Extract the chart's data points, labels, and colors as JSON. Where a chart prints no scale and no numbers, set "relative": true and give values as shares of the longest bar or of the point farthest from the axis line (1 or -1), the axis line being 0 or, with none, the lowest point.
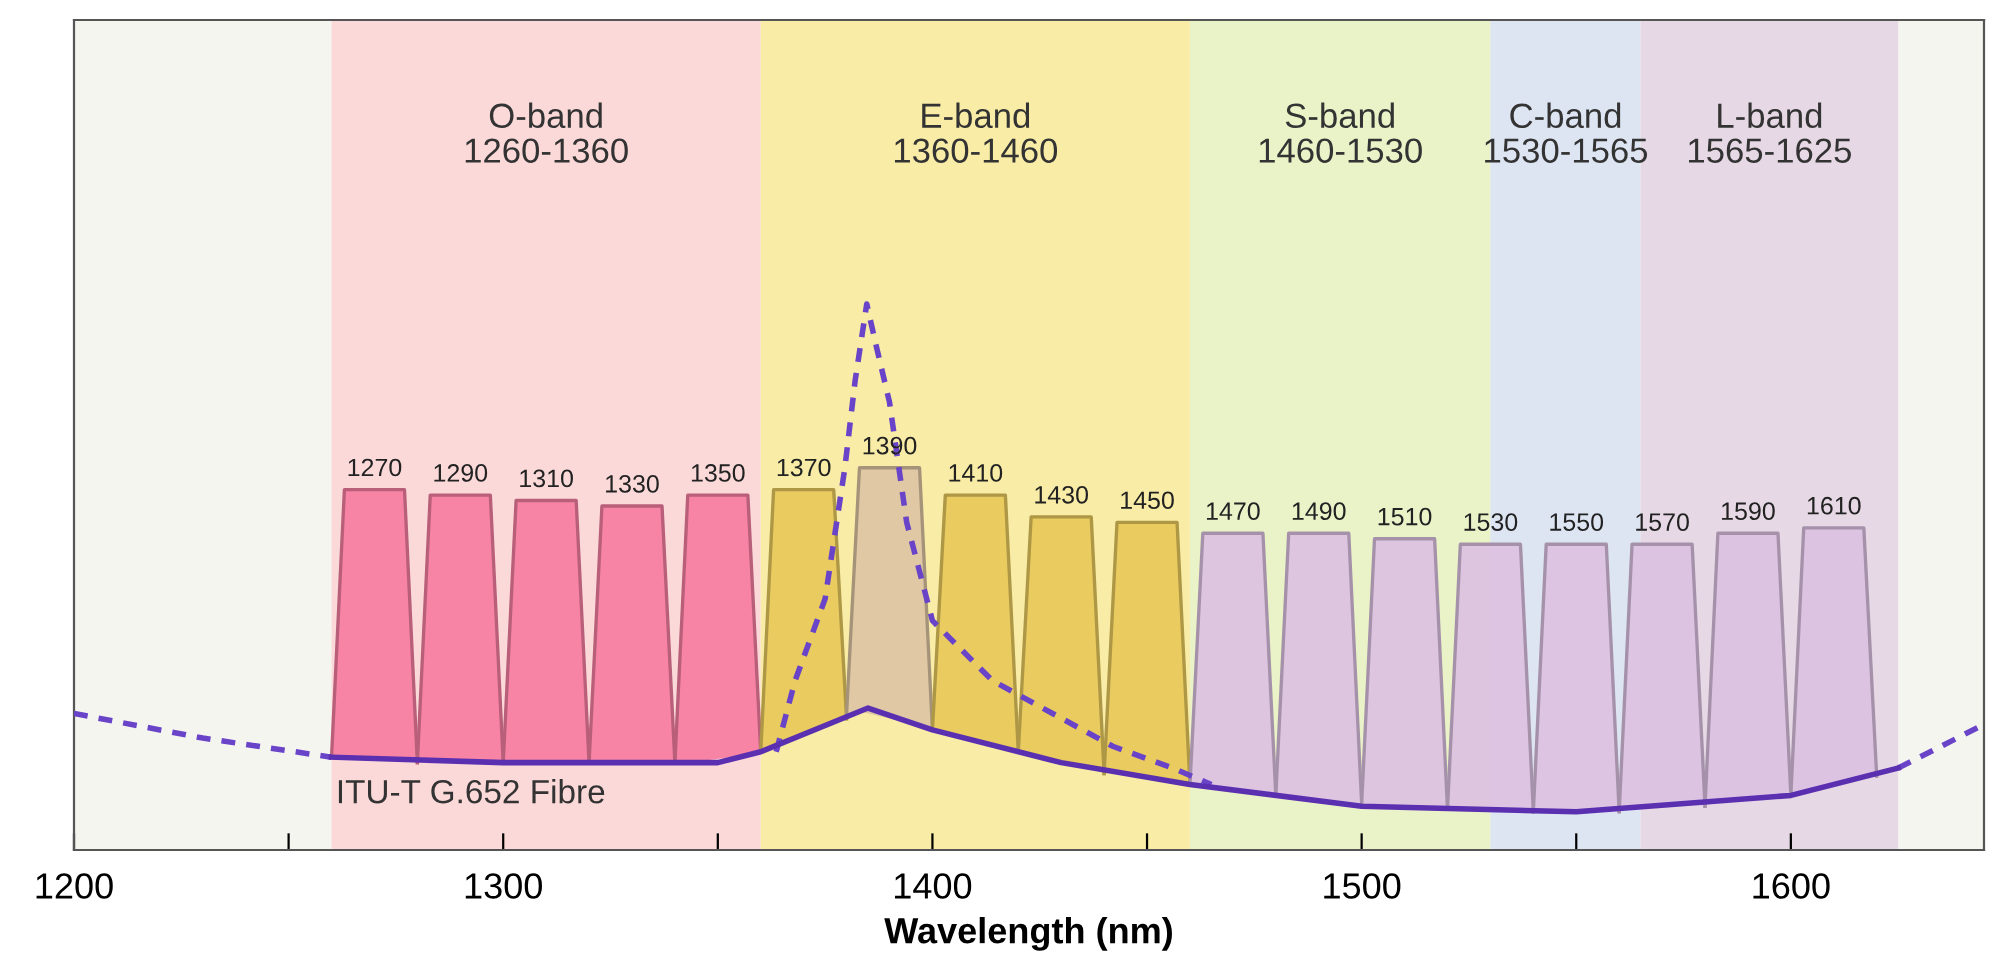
{
  "chart_data": {
    "type": "line",
    "xlabel": "Wavelength (nm)",
    "relative": true,
    "xlim": [
      1200,
      1645
    ],
    "xticks": [
      1200,
      {
        "value": 1250,
        "label": null
      },
      1300,
      {
        "value": 1350,
        "label": null
      },
      1400,
      {
        "value": 1450,
        "label": null
      },
      1500,
      {
        "value": 1550,
        "label": null
      },
      1600
    ],
    "grid": false,
    "tick_labels": "x",
    "bands": [
      {
        "axis": "x",
        "from": 1260,
        "to": 1360,
        "label": "O-band\n1260-1360",
        "color": "#fcd9d9"
      },
      {
        "axis": "x",
        "from": 1360,
        "to": 1460,
        "label": "E-band\n1360-1460",
        "color": "#f8eca6"
      },
      {
        "axis": "x",
        "from": 1460,
        "to": 1530,
        "label": "S-band\n1460-1530",
        "color": "#eaf2c8"
      },
      {
        "axis": "x",
        "from": 1530,
        "to": 1565,
        "label": "C-band\n1530-1565",
        "color": "#dde4f2"
      },
      {
        "axis": "x",
        "from": 1565,
        "to": 1625,
        "label": "L-band\n1565-1625",
        "color": "#e6d8e4"
      }
    ],
    "series": [
      {
        "type": "area",
        "color": "#f77fa2",
        "x": [
          1260,
          1263,
          1277,
          1280
        ],
        "values": [
          0.17,
          0.66,
          0.66,
          0.16
        ]
      },
      {
        "type": "area",
        "color": "#f77fa2",
        "x": [
          1280,
          1283,
          1297,
          1300
        ],
        "values": [
          0.16,
          0.65,
          0.65,
          0.16
        ]
      },
      {
        "type": "area",
        "color": "#f77fa2",
        "x": [
          1300,
          1303,
          1317,
          1320
        ],
        "values": [
          0.16,
          0.64,
          0.64,
          0.16
        ]
      },
      {
        "type": "area",
        "color": "#f77fa2",
        "x": [
          1320,
          1323,
          1337,
          1340
        ],
        "values": [
          0.16,
          0.63,
          0.63,
          0.16
        ]
      },
      {
        "type": "area",
        "color": "#f77fa2",
        "x": [
          1340,
          1343,
          1357,
          1360
        ],
        "values": [
          0.16,
          0.65,
          0.65,
          0.18
        ]
      },
      {
        "type": "area",
        "color": "#e8c95c",
        "x": [
          1360,
          1363,
          1377,
          1380
        ],
        "values": [
          0.18,
          0.66,
          0.66,
          0.24
        ]
      },
      {
        "type": "area",
        "color": "#ddc6a2",
        "x": [
          1380,
          1383,
          1397,
          1400
        ],
        "values": [
          0.25,
          0.7,
          0.7,
          0.22
        ]
      },
      {
        "type": "area",
        "color": "#e8c95c",
        "x": [
          1400,
          1403,
          1417,
          1420
        ],
        "values": [
          0.22,
          0.65,
          0.65,
          0.18
        ]
      },
      {
        "type": "area",
        "color": "#e8c95c",
        "x": [
          1420,
          1423,
          1437,
          1440
        ],
        "values": [
          0.18,
          0.61,
          0.61,
          0.14
        ]
      },
      {
        "type": "area",
        "color": "#e8c95c",
        "x": [
          1440,
          1443,
          1457,
          1460
        ],
        "values": [
          0.14,
          0.6,
          0.6,
          0.12
        ]
      },
      {
        "type": "area",
        "color": "#dcc2e2",
        "x": [
          1460,
          1463,
          1477,
          1480
        ],
        "values": [
          0.12,
          0.58,
          0.58,
          0.1
        ]
      },
      {
        "type": "area",
        "color": "#dcc2e2",
        "x": [
          1480,
          1483,
          1497,
          1500
        ],
        "values": [
          0.1,
          0.58,
          0.58,
          0.085
        ]
      },
      {
        "type": "area",
        "color": "#dcc2e2",
        "x": [
          1500,
          1503,
          1517,
          1520
        ],
        "values": [
          0.085,
          0.57,
          0.57,
          0.075
        ]
      },
      {
        "type": "area",
        "color": "#dcc2e2",
        "x": [
          1520,
          1523,
          1537,
          1540
        ],
        "values": [
          0.075,
          0.56,
          0.56,
          0.07
        ]
      },
      {
        "type": "area",
        "color": "#dcc2e2",
        "x": [
          1540,
          1543,
          1557,
          1560
        ],
        "values": [
          0.07,
          0.56,
          0.56,
          0.07
        ]
      },
      {
        "type": "area",
        "color": "#dcc2e2",
        "x": [
          1560,
          1563,
          1577,
          1580
        ],
        "values": [
          0.07,
          0.56,
          0.56,
          0.08
        ]
      },
      {
        "type": "area",
        "color": "#dcc2e2",
        "x": [
          1580,
          1583,
          1597,
          1600
        ],
        "values": [
          0.08,
          0.58,
          0.58,
          0.1
        ]
      },
      {
        "type": "area",
        "color": "#dcc2e2",
        "x": [
          1600,
          1603,
          1617,
          1620
        ],
        "values": [
          0.1,
          0.59,
          0.59,
          0.135
        ]
      },
      {
        "color": "#6a44c8",
        "line_style": "dashed",
        "x": [
          1363.6,
          1368,
          1375,
          1379.6,
          1382,
          1384.7,
          1387,
          1390,
          1394,
          1400,
          1414,
          1428,
          1442,
          1456,
          1465
        ],
        "values": [
          0.18,
          0.31,
          0.46,
          0.7,
          0.86,
          1,
          0.92,
          0.82,
          0.6,
          0.42,
          0.31,
          0.25,
          0.19,
          0.15,
          0.12
        ]
      },
      {
        "color": "#6a44c8",
        "line_style": "dashed",
        "x": [
          1200,
          1230,
          1260
        ],
        "values": [
          0.25,
          0.205,
          0.17
        ]
      },
      {
        "color": "#6a44c8",
        "line_style": "dashed",
        "x": [
          1625,
          1645
        ],
        "values": [
          0.15,
          0.23
        ]
      },
      {
        "name": "ITU-T G.652 Fibre",
        "color": "#5a2fb0",
        "line_style": "solid",
        "x": [
          1260,
          1300,
          1350,
          1360,
          1385,
          1400,
          1430,
          1460,
          1500,
          1550,
          1600,
          1625
        ],
        "values": [
          0.17,
          0.16,
          0.16,
          0.18,
          0.26,
          0.22,
          0.16,
          0.12,
          0.08,
          0.07,
          0.1,
          0.15
        ]
      }
    ],
    "annotations": [
      {
        "text": "1270",
        "x": 1270,
        "y": 0.66
      },
      {
        "text": "1290",
        "x": 1290,
        "y": 0.65
      },
      {
        "text": "1310",
        "x": 1310,
        "y": 0.64
      },
      {
        "text": "1330",
        "x": 1330,
        "y": 0.63
      },
      {
        "text": "1350",
        "x": 1350,
        "y": 0.65
      },
      {
        "text": "1370",
        "x": 1370,
        "y": 0.66
      },
      {
        "text": "1390",
        "x": 1390,
        "y": 0.7
      },
      {
        "text": "1410",
        "x": 1410,
        "y": 0.65
      },
      {
        "text": "1430",
        "x": 1430,
        "y": 0.61
      },
      {
        "text": "1450",
        "x": 1450,
        "y": 0.6
      },
      {
        "text": "1470",
        "x": 1470,
        "y": 0.58
      },
      {
        "text": "1490",
        "x": 1490,
        "y": 0.58
      },
      {
        "text": "1510",
        "x": 1510,
        "y": 0.57
      },
      {
        "text": "1530",
        "x": 1530,
        "y": 0.56
      },
      {
        "text": "1550",
        "x": 1550,
        "y": 0.56
      },
      {
        "text": "1570",
        "x": 1570,
        "y": 0.56
      },
      {
        "text": "1590",
        "x": 1590,
        "y": 0.58
      },
      {
        "text": "1610",
        "x": 1610,
        "y": 0.59
      }
    ]
  }
}
